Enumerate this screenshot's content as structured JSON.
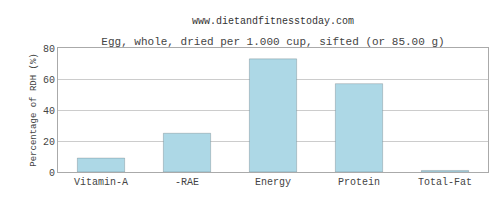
{
  "chart_data": {
    "type": "bar",
    "title": "Egg, whole, dried per 1.000 cup, sifted (or 85.00 g)",
    "subtitle": "www.dietandfitnesstoday.com",
    "categories": [
      "Vitamin-A",
      "-RAE",
      "Energy",
      "Protein",
      "Total-Fat"
    ],
    "values": [
      9,
      25,
      73,
      57,
      1
    ],
    "color": "#add8e6",
    "ylabel": "Percentage of RDH (%)",
    "ylim": [
      0,
      80
    ],
    "yticks": [
      0,
      20,
      40,
      60,
      80
    ],
    "grid": true
  }
}
